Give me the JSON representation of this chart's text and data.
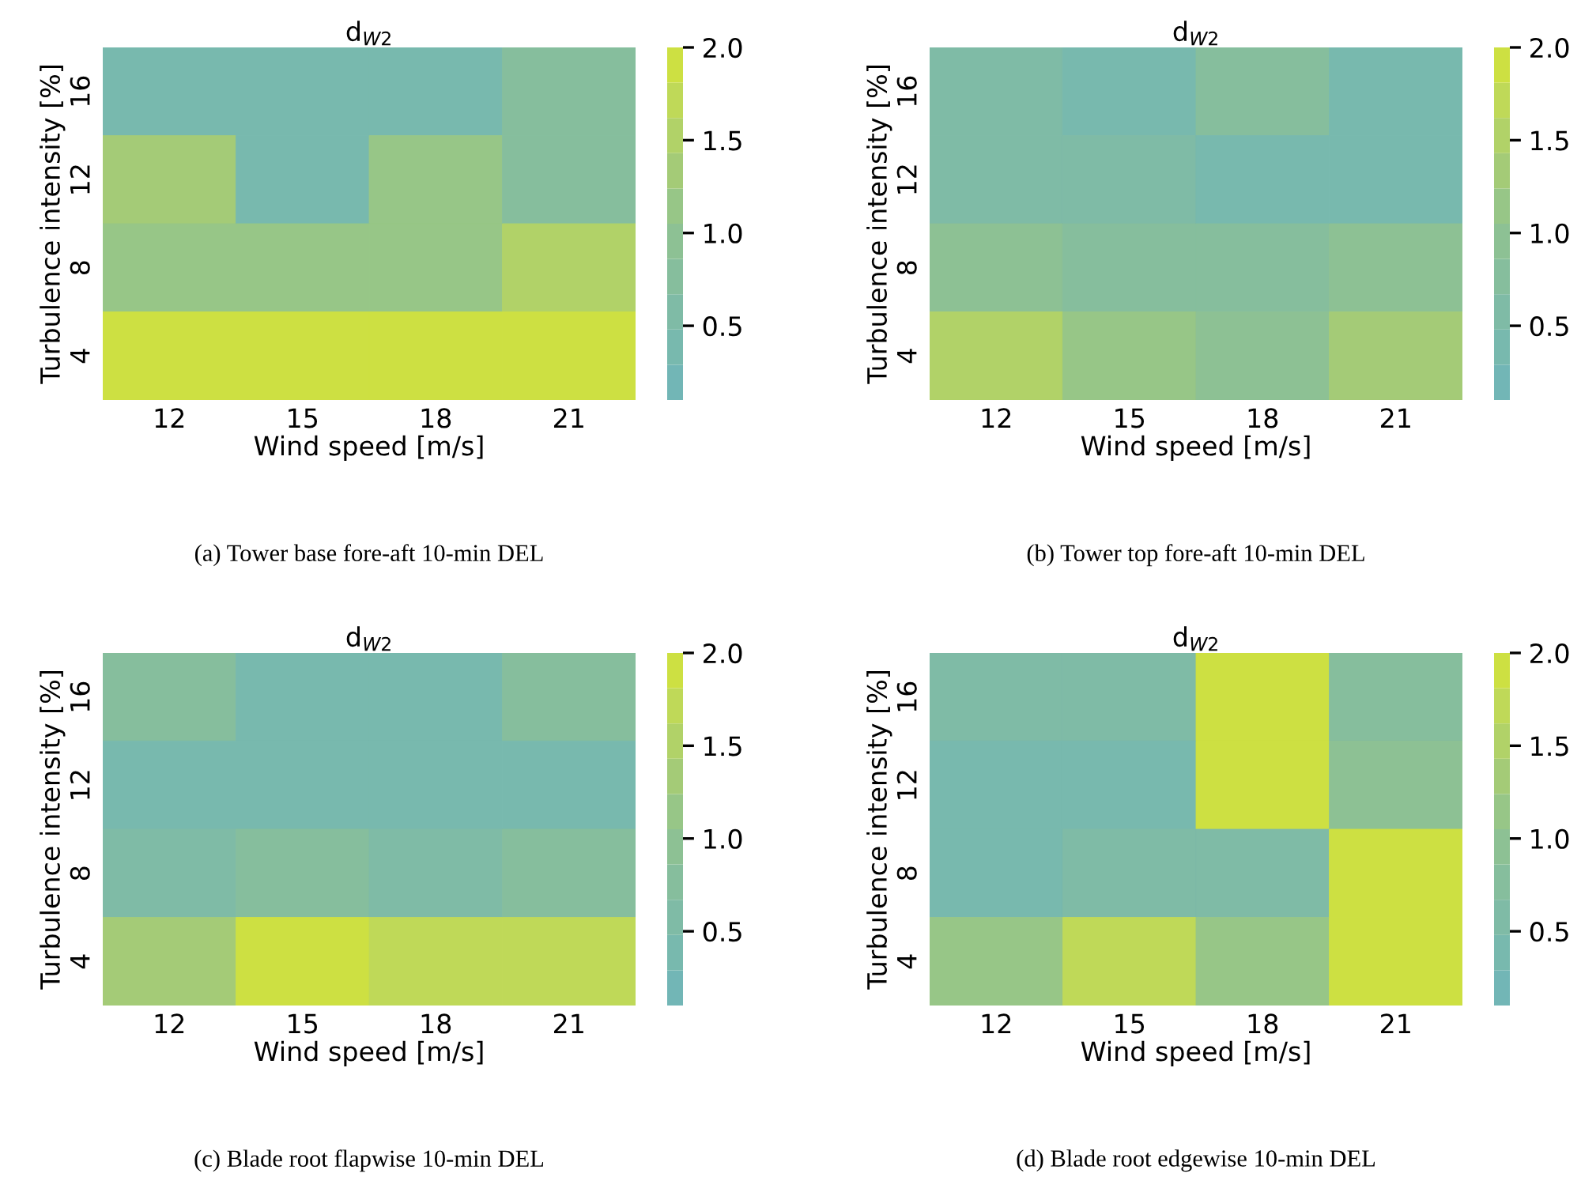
{
  "chart_data": [
    {
      "type": "heatmap",
      "title": "d$_{W2}$",
      "xlabel": "Wind speed [m/s]",
      "ylabel": "Turbulence intensity [%]",
      "categories": [
        "12",
        "15",
        "18",
        "21"
      ],
      "y_categories": [
        "16",
        "12",
        "8",
        "4"
      ],
      "cells": [
        [
          0.45,
          0.45,
          0.4,
          0.75
        ],
        [
          1.4,
          0.45,
          1.05,
          0.75
        ],
        [
          1.05,
          1.05,
          1.15,
          1.55
        ],
        [
          1.95,
          1.95,
          1.95,
          1.9
        ]
      ],
      "colors": [
        "#72b6b6",
        "#78b9ae",
        "#7fbba6",
        "#86be9d",
        "#8dc194",
        "#97c687",
        "#a4cb77",
        "#b1d268",
        "#bfd958",
        "#cde042"
      ],
      "clim": [
        0.1,
        2.0
      ],
      "cticks": [
        {
          "value": 0.5,
          "label": "0.5"
        },
        {
          "value": 1.0,
          "label": "1.0"
        },
        {
          "value": 1.5,
          "label": "1.5"
        },
        {
          "value": 2.0,
          "label": "2.0"
        }
      ],
      "grid": false,
      "annotations": [
        "(a) Tower base fore-aft 10-min DEL"
      ]
    },
    {
      "type": "heatmap",
      "title": "d$_{W2}$",
      "xlabel": "Wind speed [m/s]",
      "ylabel": "Turbulence intensity [%]",
      "categories": [
        "12",
        "15",
        "18",
        "21"
      ],
      "y_categories": [
        "16",
        "12",
        "8",
        "4"
      ],
      "cells": [
        [
          0.5,
          0.3,
          0.8,
          0.3
        ],
        [
          0.5,
          0.5,
          0.3,
          0.3
        ],
        [
          0.9,
          0.7,
          0.7,
          0.9
        ],
        [
          1.6,
          1.1,
          0.95,
          1.25
        ]
      ],
      "colors": [
        "#72b6b6",
        "#78b9ae",
        "#7fbba6",
        "#86be9d",
        "#8dc194",
        "#97c687",
        "#a4cb77",
        "#b1d268",
        "#bfd958",
        "#cde042"
      ],
      "clim": [
        0.1,
        2.0
      ],
      "cticks": [
        {
          "value": 0.5,
          "label": "0.5"
        },
        {
          "value": 1.0,
          "label": "1.0"
        },
        {
          "value": 1.5,
          "label": "1.5"
        },
        {
          "value": 2.0,
          "label": "2.0"
        }
      ],
      "grid": false,
      "annotations": [
        "(b) Tower top fore-aft 10-min DEL"
      ]
    },
    {
      "type": "heatmap",
      "title": "d$_{W2}$",
      "xlabel": "Wind speed [m/s]",
      "ylabel": "Turbulence intensity [%]",
      "categories": [
        "12",
        "15",
        "18",
        "21"
      ],
      "y_categories": [
        "16",
        "12",
        "8",
        "4"
      ],
      "cells": [
        [
          0.75,
          0.3,
          0.3,
          0.75
        ],
        [
          0.3,
          0.3,
          0.3,
          0.3
        ],
        [
          0.5,
          0.7,
          0.5,
          0.7
        ],
        [
          1.3,
          1.95,
          1.75,
          1.75
        ]
      ],
      "colors": [
        "#72b6b6",
        "#78b9ae",
        "#7fbba6",
        "#86be9d",
        "#8dc194",
        "#97c687",
        "#a4cb77",
        "#b1d268",
        "#bfd958",
        "#cde042"
      ],
      "clim": [
        0.1,
        2.0
      ],
      "cticks": [
        {
          "value": 0.5,
          "label": "0.5"
        },
        {
          "value": 1.0,
          "label": "1.0"
        },
        {
          "value": 1.5,
          "label": "1.5"
        },
        {
          "value": 2.0,
          "label": "2.0"
        }
      ],
      "grid": false,
      "annotations": [
        "(c) Blade root flapwise 10-min DEL"
      ]
    },
    {
      "type": "heatmap",
      "title": "d$_{W2}$",
      "xlabel": "Wind speed [m/s]",
      "ylabel": "Turbulence intensity [%]",
      "categories": [
        "12",
        "15",
        "18",
        "21"
      ],
      "y_categories": [
        "16",
        "12",
        "8",
        "4"
      ],
      "cells": [
        [
          0.5,
          0.5,
          1.95,
          0.75
        ],
        [
          0.3,
          0.3,
          1.95,
          0.9
        ],
        [
          0.3,
          0.5,
          0.5,
          1.95
        ],
        [
          1.05,
          1.75,
          1.05,
          1.95
        ]
      ],
      "colors": [
        "#72b6b6",
        "#78b9ae",
        "#7fbba6",
        "#86be9d",
        "#8dc194",
        "#97c687",
        "#a4cb77",
        "#b1d268",
        "#bfd958",
        "#cde042"
      ],
      "clim": [
        0.1,
        2.0
      ],
      "cticks": [
        {
          "value": 0.5,
          "label": "0.5"
        },
        {
          "value": 1.0,
          "label": "1.0"
        },
        {
          "value": 1.5,
          "label": "1.5"
        },
        {
          "value": 2.0,
          "label": "2.0"
        }
      ],
      "grid": false,
      "annotations": [
        "(d) Blade root edgewise 10-min DEL"
      ]
    }
  ]
}
